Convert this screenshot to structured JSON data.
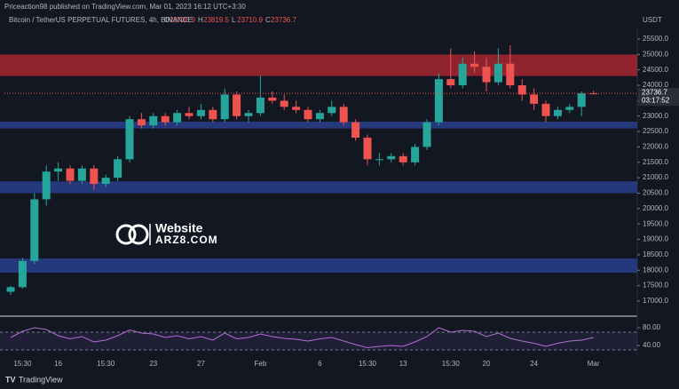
{
  "header": {
    "publisher": "Priceaction98 published on TradingView.com, Mar 01, 2023 16:12 UTC+3:30",
    "symbol": "Bitcoin / TetherUS PERPETUAL FUTURES, 4h, BINANCE",
    "ohlc_letters": [
      "O",
      "H",
      "L",
      "C"
    ],
    "countdown": "03:17:52",
    "watermark": [
      "Website",
      "ARZ8.COM"
    ],
    "footer": "TradingView"
  },
  "chart_data": [
    {
      "type": "candlestick",
      "y_label": "USDT",
      "up_color": "#26a69a",
      "down_color": "#ef5350",
      "categories": [
        null,
        "15:30",
        null,
        null,
        "16",
        null,
        null,
        null,
        "15:30",
        null,
        null,
        null,
        "23",
        null,
        null,
        null,
        "27",
        null,
        null,
        null,
        null,
        "Feb",
        null,
        null,
        null,
        null,
        "6",
        null,
        null,
        null,
        "15:30",
        null,
        null,
        "13",
        null,
        null,
        null,
        "15:30",
        null,
        null,
        "20",
        null,
        null,
        null,
        "24",
        null,
        null,
        null,
        null,
        "Mar"
      ],
      "open": [
        17300,
        17450,
        18300,
        20300,
        21200,
        21300,
        20900,
        21300,
        20800,
        21000,
        21600,
        22900,
        22700,
        23000,
        22800,
        23100,
        23000,
        23200,
        22900,
        23700,
        23000,
        23100,
        23600,
        23500,
        23300,
        23200,
        22900,
        23100,
        23300,
        22800,
        22300,
        21600,
        21600,
        21700,
        21500,
        22000,
        22800,
        24200,
        24000,
        24700,
        24600,
        24100,
        24700,
        24000,
        23700,
        23400,
        23000,
        23200,
        23300,
        23736.9
      ],
      "high": [
        17500,
        18400,
        20500,
        21400,
        21500,
        21400,
        21400,
        21400,
        21100,
        21700,
        23000,
        23100,
        23100,
        23100,
        23200,
        23300,
        23400,
        23300,
        23900,
        23800,
        23200,
        24300,
        23800,
        23700,
        23500,
        23300,
        23200,
        23500,
        23400,
        22900,
        22400,
        21800,
        21800,
        21800,
        22100,
        22900,
        24400,
        25200,
        24900,
        25100,
        24900,
        25200,
        25300,
        24200,
        23900,
        23500,
        23300,
        23400,
        23800,
        23819.5
      ],
      "low": [
        17200,
        17400,
        18200,
        20100,
        20900,
        20800,
        20800,
        20600,
        20700,
        20900,
        21500,
        22600,
        22600,
        22700,
        22700,
        22900,
        22900,
        22800,
        22800,
        22900,
        22800,
        23000,
        23400,
        23200,
        23100,
        22800,
        22800,
        23000,
        22700,
        22200,
        21400,
        21400,
        21500,
        21400,
        21400,
        21900,
        22700,
        23900,
        23900,
        24400,
        23800,
        24000,
        23900,
        23500,
        23200,
        22800,
        22900,
        23100,
        23000,
        23710.9
      ],
      "close": [
        17450,
        18300,
        20300,
        21200,
        21300,
        20900,
        21300,
        20800,
        21000,
        21600,
        22900,
        22700,
        23000,
        22800,
        23100,
        23000,
        23200,
        22900,
        23700,
        23000,
        23100,
        23600,
        23500,
        23300,
        23200,
        22900,
        23100,
        23300,
        22800,
        22300,
        21600,
        21600,
        21700,
        21500,
        22000,
        22800,
        24200,
        24000,
        24700,
        24600,
        24100,
        24700,
        24000,
        23700,
        23400,
        23000,
        23200,
        23300,
        23737,
        23736.7
      ],
      "zones": [
        {
          "from": 24300,
          "to": 25000,
          "color": "rgba(178,40,51,0.78)"
        },
        {
          "from": 22600,
          "to": 22820,
          "color": "rgba(41,62,140,0.85)"
        },
        {
          "from": 20500,
          "to": 20880,
          "color": "rgba(41,62,140,0.85)"
        },
        {
          "from": 17920,
          "to": 18380,
          "color": "rgba(41,62,140,0.85)"
        }
      ],
      "ylim": [
        16537,
        25759
      ],
      "yticks": [
        {
          "value": 17000,
          "label": "17000.0"
        },
        {
          "value": 17500,
          "label": "17500.0"
        },
        {
          "value": 18000,
          "label": "18000.0"
        },
        {
          "value": 18500,
          "label": "18500.0"
        },
        {
          "value": 19000,
          "label": "19000.0"
        },
        {
          "value": 19500,
          "label": "19500.0"
        },
        {
          "value": 20000,
          "label": "20000.0"
        },
        {
          "value": 20500,
          "label": "20500.0"
        },
        {
          "value": 21000,
          "label": "21000.0"
        },
        {
          "value": 21500,
          "label": "21500.0"
        },
        {
          "value": 22000,
          "label": "22000.0"
        },
        {
          "value": 22500,
          "label": "22500.0"
        },
        {
          "value": 23000,
          "label": "23000.0"
        },
        {
          "value": 23500,
          "label": "23500.0"
        },
        {
          "value": 24000,
          "label": "24000.0"
        },
        {
          "value": 24500,
          "label": "24500.0"
        },
        {
          "value": 25000,
          "label": "25000.0"
        },
        {
          "value": 25500,
          "label": "25500.0"
        }
      ]
    },
    {
      "type": "line",
      "color": "#b36fd6",
      "values": [
        58,
        72,
        80,
        76,
        62,
        55,
        60,
        48,
        52,
        62,
        75,
        68,
        66,
        58,
        62,
        55,
        60,
        52,
        68,
        55,
        58,
        66,
        60,
        56,
        54,
        50,
        55,
        58,
        50,
        42,
        35,
        38,
        40,
        38,
        48,
        60,
        80,
        70,
        74,
        72,
        60,
        68,
        56,
        50,
        45,
        38,
        45,
        50,
        52,
        58
      ],
      "band": [
        30,
        70
      ],
      "ylim": [
        18,
        102
      ],
      "yticks": [
        {
          "value": 80,
          "label": "80.00"
        },
        {
          "value": 40,
          "label": "40.00"
        }
      ]
    }
  ]
}
